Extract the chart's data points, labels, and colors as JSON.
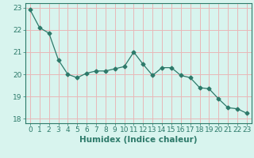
{
  "x": [
    0,
    1,
    2,
    3,
    4,
    5,
    6,
    7,
    8,
    9,
    10,
    11,
    12,
    13,
    14,
    15,
    16,
    17,
    18,
    19,
    20,
    21,
    22,
    23
  ],
  "y": [
    22.9,
    22.1,
    21.85,
    20.65,
    20.0,
    19.85,
    20.05,
    20.15,
    20.15,
    20.25,
    20.35,
    21.0,
    20.45,
    19.95,
    20.3,
    20.3,
    19.95,
    19.85,
    19.4,
    19.35,
    18.9,
    18.5,
    18.45,
    18.25
  ],
  "line_color": "#2d7a6a",
  "marker": "D",
  "marker_size": 2.5,
  "bg_color": "#d8f4ee",
  "grid_color": "#e8b8b8",
  "axis_color": "#2d7a6a",
  "xlabel": "Humidex (Indice chaleur)",
  "ylim": [
    17.8,
    23.2
  ],
  "xlim": [
    -0.5,
    23.5
  ],
  "yticks": [
    18,
    19,
    20,
    21,
    22,
    23
  ],
  "xticks": [
    0,
    1,
    2,
    3,
    4,
    5,
    6,
    7,
    8,
    9,
    10,
    11,
    12,
    13,
    14,
    15,
    16,
    17,
    18,
    19,
    20,
    21,
    22,
    23
  ],
  "tick_fontsize": 6.5,
  "xlabel_fontsize": 7.5
}
